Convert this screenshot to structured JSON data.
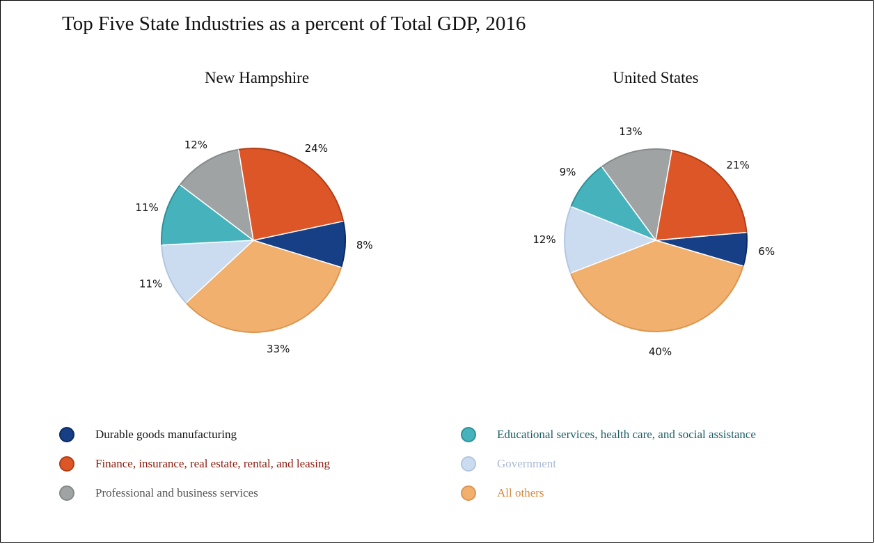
{
  "title": "Top Five State Industries as a percent of Total GDP, 2016",
  "legend": [
    {
      "label": "Durable goods manufacturing",
      "color": "#163f86",
      "border": "#0b2a63",
      "text_color": "#111111",
      "icon": "circle-swatch"
    },
    {
      "label": "Finance, insurance, real estate, rental, and leasing",
      "color": "#dc5627",
      "border": "#b23d14",
      "text_color": "#8b1a0c",
      "icon": "circle-swatch"
    },
    {
      "label": "Professional and business services",
      "color": "#9fa3a4",
      "border": "#858a8b",
      "text_color": "#555555",
      "icon": "circle-swatch"
    },
    {
      "label": "Educational services, health care, and social assistance",
      "color": "#46b3bc",
      "border": "#2f8f98",
      "text_color": "#1c5e66",
      "icon": "circle-swatch"
    },
    {
      "label": "Government",
      "color": "#ccdcf0",
      "border": "#b2c6e0",
      "text_color": "#a9b9d3",
      "icon": "circle-swatch"
    },
    {
      "label": "All others",
      "color": "#f2b06f",
      "border": "#dc9550",
      "text_color": "#d98a3e",
      "icon": "circle-swatch"
    }
  ],
  "chart_data": [
    {
      "type": "pie",
      "title": "New Hampshire",
      "categories": [
        "Durable goods manufacturing",
        "All others",
        "Government",
        "Educational services, health care, and social assistance",
        "Professional and business services",
        "Finance, insurance, real estate, rental, and leasing"
      ],
      "values": [
        8,
        33,
        11,
        11,
        12,
        24
      ],
      "labels": [
        "8%",
        "33%",
        "11%",
        "11%",
        "12%",
        "24%"
      ],
      "start_angle_deg": -12,
      "direction": "clockwise"
    },
    {
      "type": "pie",
      "title": "United States",
      "categories": [
        "Durable goods manufacturing",
        "All others",
        "Government",
        "Educational services, health care, and social assistance",
        "Professional and business services",
        "Finance, insurance, real estate, rental, and leasing"
      ],
      "values": [
        6,
        40,
        12,
        9,
        13,
        21
      ],
      "labels": [
        "6%",
        "40%",
        "12%",
        "9%",
        "13%",
        "21%"
      ],
      "start_angle_deg": -5,
      "direction": "clockwise"
    }
  ]
}
